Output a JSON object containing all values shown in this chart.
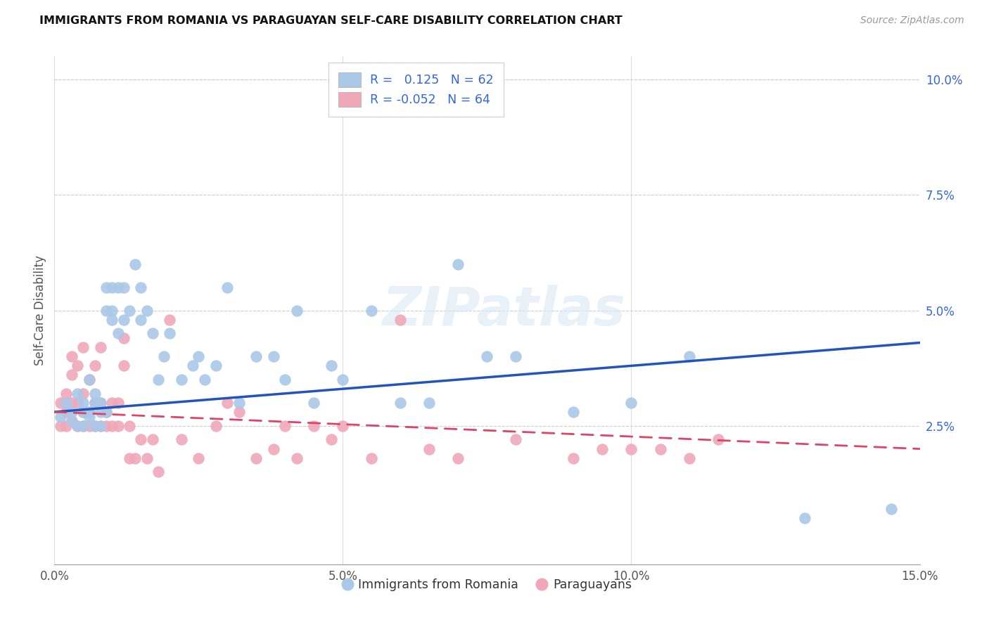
{
  "title": "IMMIGRANTS FROM ROMANIA VS PARAGUAYAN SELF-CARE DISABILITY CORRELATION CHART",
  "source": "Source: ZipAtlas.com",
  "ylabel": "Self-Care Disability",
  "xlim": [
    0.0,
    0.15
  ],
  "ylim": [
    -0.005,
    0.105
  ],
  "blue_R": 0.125,
  "blue_N": 62,
  "pink_R": -0.052,
  "pink_N": 64,
  "blue_color": "#aac8e8",
  "pink_color": "#f0a8b8",
  "blue_line_color": "#2255bb",
  "pink_line_color": "#dd4466",
  "legend_text_color": "#3366dd",
  "watermark": "ZIPatlas",
  "blue_scatter_x": [
    0.001,
    0.002,
    0.003,
    0.003,
    0.004,
    0.004,
    0.005,
    0.005,
    0.005,
    0.006,
    0.006,
    0.006,
    0.007,
    0.007,
    0.007,
    0.008,
    0.008,
    0.008,
    0.009,
    0.009,
    0.009,
    0.01,
    0.01,
    0.01,
    0.011,
    0.011,
    0.012,
    0.012,
    0.013,
    0.014,
    0.015,
    0.015,
    0.016,
    0.017,
    0.018,
    0.019,
    0.02,
    0.022,
    0.024,
    0.025,
    0.026,
    0.028,
    0.03,
    0.032,
    0.035,
    0.038,
    0.04,
    0.042,
    0.045,
    0.048,
    0.05,
    0.055,
    0.06,
    0.065,
    0.07,
    0.075,
    0.08,
    0.09,
    0.1,
    0.11,
    0.13,
    0.145
  ],
  "blue_scatter_y": [
    0.027,
    0.03,
    0.026,
    0.028,
    0.025,
    0.032,
    0.025,
    0.028,
    0.03,
    0.027,
    0.035,
    0.028,
    0.025,
    0.03,
    0.032,
    0.028,
    0.025,
    0.03,
    0.055,
    0.05,
    0.028,
    0.055,
    0.05,
    0.048,
    0.055,
    0.045,
    0.055,
    0.048,
    0.05,
    0.06,
    0.055,
    0.048,
    0.05,
    0.045,
    0.035,
    0.04,
    0.045,
    0.035,
    0.038,
    0.04,
    0.035,
    0.038,
    0.055,
    0.03,
    0.04,
    0.04,
    0.035,
    0.05,
    0.03,
    0.038,
    0.035,
    0.05,
    0.03,
    0.03,
    0.06,
    0.04,
    0.04,
    0.028,
    0.03,
    0.04,
    0.005,
    0.007
  ],
  "pink_scatter_x": [
    0.001,
    0.001,
    0.002,
    0.002,
    0.002,
    0.003,
    0.003,
    0.003,
    0.003,
    0.004,
    0.004,
    0.004,
    0.005,
    0.005,
    0.005,
    0.005,
    0.006,
    0.006,
    0.006,
    0.007,
    0.007,
    0.007,
    0.008,
    0.008,
    0.008,
    0.009,
    0.009,
    0.01,
    0.01,
    0.011,
    0.011,
    0.012,
    0.012,
    0.013,
    0.013,
    0.014,
    0.015,
    0.016,
    0.017,
    0.018,
    0.02,
    0.022,
    0.025,
    0.028,
    0.03,
    0.032,
    0.035,
    0.038,
    0.04,
    0.042,
    0.045,
    0.048,
    0.05,
    0.055,
    0.06,
    0.065,
    0.07,
    0.08,
    0.09,
    0.095,
    0.1,
    0.105,
    0.11,
    0.115
  ],
  "pink_scatter_y": [
    0.025,
    0.03,
    0.025,
    0.028,
    0.032,
    0.026,
    0.03,
    0.036,
    0.04,
    0.025,
    0.03,
    0.038,
    0.025,
    0.028,
    0.032,
    0.042,
    0.025,
    0.028,
    0.035,
    0.025,
    0.03,
    0.038,
    0.025,
    0.03,
    0.042,
    0.025,
    0.028,
    0.025,
    0.03,
    0.025,
    0.03,
    0.038,
    0.044,
    0.018,
    0.025,
    0.018,
    0.022,
    0.018,
    0.022,
    0.015,
    0.048,
    0.022,
    0.018,
    0.025,
    0.03,
    0.028,
    0.018,
    0.02,
    0.025,
    0.018,
    0.025,
    0.022,
    0.025,
    0.018,
    0.048,
    0.02,
    0.018,
    0.022,
    0.018,
    0.02,
    0.02,
    0.02,
    0.018,
    0.022
  ],
  "blue_trendline_x": [
    0.0,
    0.15
  ],
  "blue_trendline_y": [
    0.028,
    0.043
  ],
  "pink_trendline_x": [
    0.0,
    0.15
  ],
  "pink_trendline_y": [
    0.028,
    0.02
  ]
}
